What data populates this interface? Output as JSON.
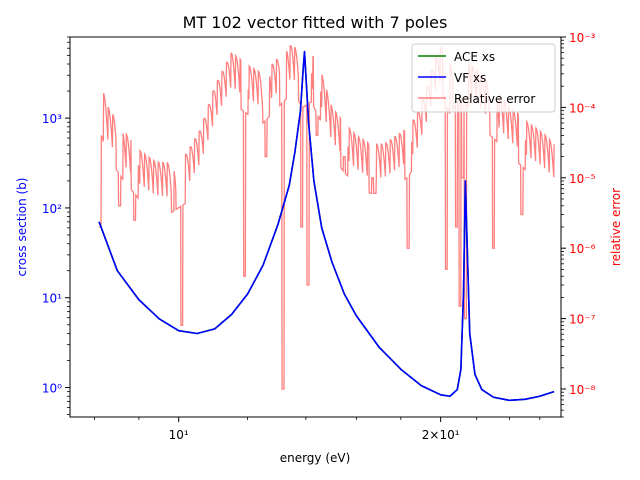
{
  "chart_data": {
    "type": "line",
    "title": "MT 102 vector fitted with 7 poles",
    "xlabel": "energy (eV)",
    "ylabel_left": "cross section (b)",
    "ylabel_right": "relative error",
    "x_scale": "log",
    "y_left_scale": "log",
    "y_right_scale": "log",
    "xlim": [
      7.5,
      27.5
    ],
    "ylim_left": [
      0.47,
      8000
    ],
    "ylim_right": [
      4e-09,
      0.001
    ],
    "x_tick_labels": [
      {
        "value": 10,
        "label": "10¹"
      },
      {
        "value": 20,
        "label": "2×10¹"
      }
    ],
    "x_minor_ticks": [
      8,
      9,
      12,
      14,
      16,
      18,
      22,
      24,
      26
    ],
    "y_left_ticks": [
      {
        "value": 1,
        "label": "10⁰"
      },
      {
        "value": 10,
        "label": "10¹"
      },
      {
        "value": 100,
        "label": "10²"
      },
      {
        "value": 1000,
        "label": "10³"
      }
    ],
    "y_right_ticks": [
      {
        "value": 1e-08,
        "label": "10⁻⁸"
      },
      {
        "value": 1e-07,
        "label": "10⁻⁷"
      },
      {
        "value": 1e-06,
        "label": "10⁻⁶"
      },
      {
        "value": 1e-05,
        "label": "10⁻⁵"
      },
      {
        "value": 0.0001,
        "label": "10⁻⁴"
      },
      {
        "value": 0.001,
        "label": "10⁻³"
      }
    ],
    "legend": {
      "position": "top-right",
      "entries": [
        {
          "label": "ACE xs",
          "color": "#008000"
        },
        {
          "label": "VF xs",
          "color": "#0000ff"
        },
        {
          "label": "Relative error",
          "color": "#ff0000"
        }
      ]
    },
    "series": [
      {
        "name": "ACE xs",
        "axis": "left",
        "color": "#008000",
        "x": [
          8.1,
          8.5,
          9.0,
          9.5,
          10.0,
          10.5,
          11.0,
          11.5,
          12.0,
          12.5,
          13.0,
          13.4,
          13.6,
          13.8,
          13.9,
          13.95,
          14.0,
          14.1,
          14.3,
          14.6,
          15.0,
          15.5,
          16.0,
          17.0,
          18.0,
          19.0,
          20.0,
          20.5,
          20.9,
          21.1,
          21.25,
          21.35,
          21.45,
          21.6,
          21.9,
          22.3,
          23.0,
          24.0,
          25.0,
          26.0,
          26.5,
          27.0
        ],
        "y": [
          70,
          20,
          9.5,
          5.8,
          4.3,
          4.0,
          4.5,
          6.5,
          11,
          23,
          65,
          180,
          420,
          1200,
          3500,
          5500,
          3000,
          900,
          200,
          60,
          25,
          11,
          6.3,
          2.8,
          1.6,
          1.05,
          0.83,
          0.8,
          0.95,
          1.6,
          12,
          200,
          40,
          4,
          1.4,
          0.95,
          0.78,
          0.72,
          0.74,
          0.8,
          0.85,
          0.9
        ]
      },
      {
        "name": "VF xs",
        "axis": "left",
        "color": "#0000ff",
        "x": [
          8.1,
          8.5,
          9.0,
          9.5,
          10.0,
          10.5,
          11.0,
          11.5,
          12.0,
          12.5,
          13.0,
          13.4,
          13.6,
          13.8,
          13.9,
          13.95,
          14.0,
          14.1,
          14.3,
          14.6,
          15.0,
          15.5,
          16.0,
          17.0,
          18.0,
          19.0,
          20.0,
          20.5,
          20.9,
          21.1,
          21.25,
          21.35,
          21.45,
          21.6,
          21.9,
          22.3,
          23.0,
          24.0,
          25.0,
          26.0,
          26.5,
          27.0
        ],
        "y": [
          70,
          20,
          9.5,
          5.8,
          4.3,
          4.0,
          4.5,
          6.5,
          11,
          23,
          65,
          180,
          420,
          1200,
          3500,
          5500,
          3000,
          900,
          200,
          60,
          25,
          11,
          6.3,
          2.8,
          1.6,
          1.05,
          0.83,
          0.8,
          0.95,
          1.6,
          12,
          200,
          40,
          4,
          1.4,
          0.95,
          0.78,
          0.72,
          0.74,
          0.8,
          0.85,
          0.9
        ]
      },
      {
        "name": "Relative error",
        "axis": "right",
        "color": "#ff0000",
        "opacity": 0.5,
        "envelope_x": [
          8.1,
          8.3,
          8.6,
          9.0,
          9.4,
          9.8,
          10.2,
          10.6,
          11.0,
          11.5,
          12.0,
          12.5,
          13.0,
          13.5,
          13.9,
          14.2,
          14.6,
          15.0,
          15.5,
          16.0,
          16.6,
          17.2,
          17.8,
          18.3,
          18.8,
          19.3,
          19.7,
          20.1,
          20.5,
          20.9,
          21.3,
          21.7,
          22.2,
          22.8,
          23.4,
          24.0,
          24.6,
          25.2,
          25.8,
          26.4,
          27.0
        ],
        "envelope_y": [
          0.00025,
          0.0001,
          5e-05,
          2.5e-05,
          1.7e-05,
          1.6e-05,
          2.2e-05,
          5e-05,
          0.0002,
          0.0006,
          0.0004,
          0.0003,
          0.0005,
          0.0008,
          0.0005,
          0.0006,
          0.0003,
          0.0001,
          6e-05,
          4e-05,
          3e-05,
          3e-05,
          4e-05,
          5e-05,
          8e-05,
          0.0002,
          0.0005,
          0.0008,
          0.0004,
          0.0006,
          0.0007,
          0.0004,
          0.0003,
          0.0002,
          0.00015,
          0.0001,
          8e-05,
          6e-05,
          5e-05,
          4e-05,
          3e-05
        ],
        "dips_x": [
          8.12,
          8.55,
          8.9,
          9.9,
          10.08,
          11.9,
          12.6,
          13.18,
          13.85,
          14.08,
          14.42,
          15.5,
          16.7,
          18.35,
          20.3,
          20.85,
          21.05,
          21.2,
          21.35,
          23.0,
          24.8
        ],
        "dips_y": [
          2e-06,
          4e-06,
          2.5e-06,
          1.5e-05,
          8e-08,
          4e-07,
          2e-05,
          1e-08,
          2e-06,
          3e-07,
          4e-05,
          2e-05,
          1e-05,
          1e-06,
          5e-07,
          2e-06,
          1.5e-07,
          1e-05,
          1e-07,
          1e-06,
          3e-06
        ]
      }
    ]
  }
}
